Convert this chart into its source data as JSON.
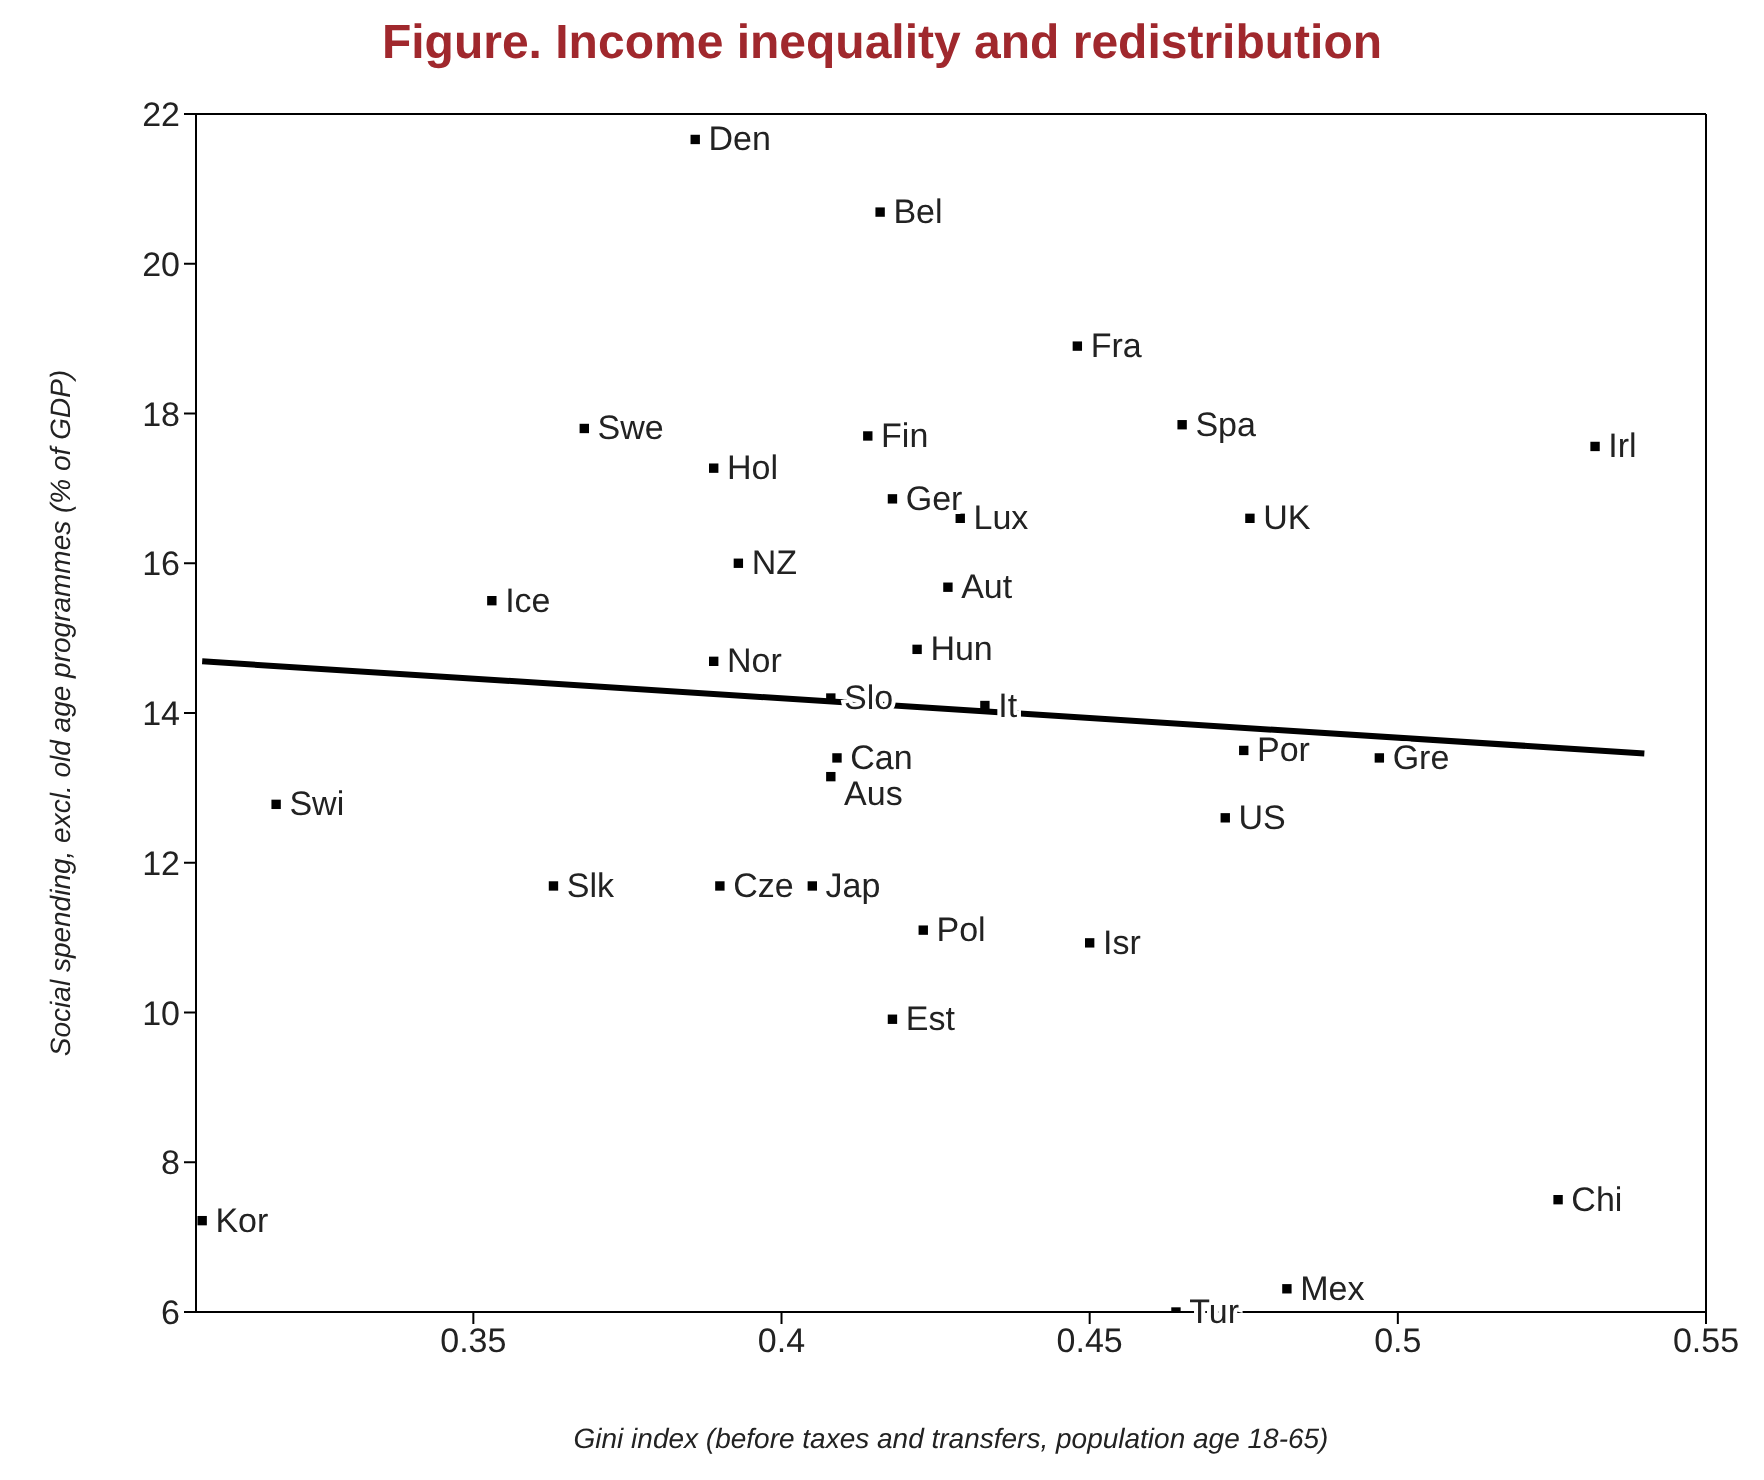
{
  "chart_data": {
    "type": "scatter",
    "title": "Figure. Income inequality and redistribution",
    "xlabel": "Gini index (before taxes and transfers, population age 18-65)",
    "ylabel": "Social spending, excl. old age programmes (% of GDP)",
    "xlim": [
      0.305,
      0.55
    ],
    "xticks": [
      0.35,
      0.4,
      0.45,
      0.5,
      0.55
    ],
    "ylim": [
      6,
      22
    ],
    "yticks": [
      6,
      8,
      10,
      12,
      14,
      16,
      18,
      20,
      22
    ],
    "grid": false,
    "legend": false,
    "marker": "square",
    "series": [
      {
        "type": "scatter",
        "color": "#000000",
        "x": [
          0.386,
          0.416,
          0.448,
          0.465,
          0.532,
          0.368,
          0.389,
          0.414,
          0.418,
          0.429,
          0.476,
          0.393,
          0.353,
          0.427,
          0.422,
          0.389,
          0.408,
          0.433,
          0.409,
          0.408,
          0.475,
          0.497,
          0.472,
          0.318,
          0.363,
          0.39,
          0.405,
          0.423,
          0.45,
          0.418,
          0.306,
          0.526,
          0.482,
          0.464
        ],
        "values": [
          21.66,
          20.69,
          18.9,
          17.85,
          17.56,
          17.8,
          17.27,
          17.7,
          16.86,
          16.6,
          16.6,
          16.0,
          15.5,
          15.68,
          14.85,
          14.69,
          14.2,
          14.1,
          13.4,
          13.15,
          13.5,
          13.4,
          12.6,
          12.78,
          11.69,
          11.69,
          11.69,
          11.1,
          10.93,
          9.91,
          7.22,
          7.5,
          6.31,
          6.0
        ],
        "value_labels": [
          "Den",
          "Bel",
          "Fra",
          "Spa",
          "Irl",
          "Swe",
          "Hol",
          "Fin",
          "Ger",
          "Lux",
          "UK",
          "NZ",
          "Ice",
          "Aut",
          "Hun",
          "Nor",
          "Slo",
          "It",
          "Can",
          "Aus",
          "Por",
          "Gre",
          "US",
          "Swi",
          "Slk",
          "Cze",
          "Jap",
          "Pol",
          "Isr",
          "Est",
          "Kor",
          "Chi",
          "Mex",
          "Tur"
        ]
      },
      {
        "type": "line",
        "color": "#000000",
        "marker": "none",
        "x": [
          0.306,
          0.54
        ],
        "values": [
          14.69,
          13.46
        ]
      }
    ]
  }
}
